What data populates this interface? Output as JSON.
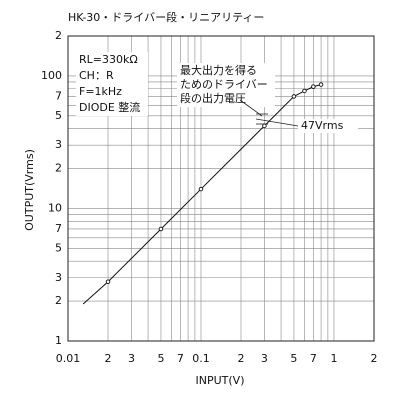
{
  "chart_data": {
    "type": "line",
    "title": "HK-30・ドライバー段・リニアリティー",
    "x_label": "INPUT(V)",
    "y_label": "OUTPUT(Vrms)",
    "log_x": true,
    "log_y": true,
    "grid": true,
    "xlim": [
      0.01,
      2
    ],
    "ylim": [
      1,
      200
    ],
    "xticks": [
      {
        "value": 0.01,
        "label": "0.01"
      },
      {
        "value": 0.02,
        "label": "2"
      },
      {
        "value": 0.03,
        "label": "3"
      },
      {
        "value": 0.05,
        "label": "5"
      },
      {
        "value": 0.07,
        "label": "7"
      },
      {
        "value": 0.1,
        "label": "0.1"
      },
      {
        "value": 0.2,
        "label": "2"
      },
      {
        "value": 0.3,
        "label": "3"
      },
      {
        "value": 0.5,
        "label": "5"
      },
      {
        "value": 0.7,
        "label": "7"
      },
      1,
      2
    ],
    "x_minor_ticks": [
      0.04,
      0.06,
      0.08,
      0.09,
      0.4,
      0.6,
      0.8,
      0.9
    ],
    "yticks": [
      1,
      2,
      3,
      5,
      7,
      10,
      {
        "value": 20,
        "label": "2"
      },
      {
        "value": 30,
        "label": "3"
      },
      {
        "value": 50,
        "label": "5"
      },
      {
        "value": 70,
        "label": "7"
      },
      100,
      {
        "value": 200,
        "label": "2"
      }
    ],
    "y_minor_ticks": [
      4,
      6,
      8,
      9,
      40,
      60,
      80,
      90
    ],
    "series": [
      {
        "color": "#111111",
        "x": [
          0.013,
          0.02,
          0.05,
          0.1,
          0.3,
          0.5,
          0.6,
          0.7,
          0.8
        ],
        "values": [
          1.9,
          2.8,
          7,
          14,
          42,
          70,
          77,
          83,
          86
        ]
      },
      {
        "color": "#111111",
        "marker": "circle",
        "x": [
          0.02,
          0.05,
          0.1,
          0.3,
          0.5,
          0.6,
          0.7,
          0.8
        ],
        "values": [
          2.8,
          7,
          14,
          42,
          70,
          77,
          83,
          86
        ]
      }
    ],
    "conditions": [
      "RL=330kΩ",
      "CH：R",
      "F=1kHz",
      "DIODE 整流"
    ],
    "annotation": [
      "最大出力を得る",
      "ためのドライバー",
      "段の出力電圧"
    ],
    "marker_label": "47Vrms"
  }
}
